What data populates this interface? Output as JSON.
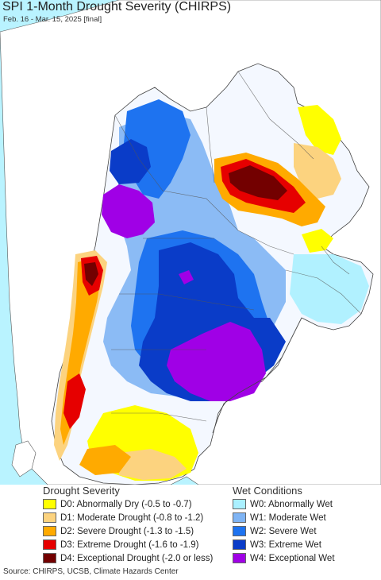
{
  "title": "SPI 1-Month Drought Severity (CHIRPS)",
  "subtitle": "Feb. 16 - Mar. 15, 2025 [final]",
  "colors": {
    "ocean": "#b9f3ff",
    "land_outside": "#ffffff",
    "border": "#555555"
  },
  "legend": {
    "drought": {
      "title": "Drought Severity",
      "items": [
        {
          "label": "D0: Abnormally Dry (-0.5 to -0.7)",
          "color": "#ffff00"
        },
        {
          "label": "D1: Moderate Drought (-0.8 to -1.2)",
          "color": "#fcd37f"
        },
        {
          "label": "D2: Severe Drought (-1.3 to -1.5)",
          "color": "#ffaa00"
        },
        {
          "label": "D3: Extreme Drought (-1.6 to -1.9)",
          "color": "#e60000"
        },
        {
          "label": "D4: Exceptional Drought (-2.0 or less)",
          "color": "#730000"
        }
      ]
    },
    "wet": {
      "title": "Wet Conditions",
      "items": [
        {
          "label": "W0: Abnormally Wet",
          "color": "#aaf0ff"
        },
        {
          "label": "W1: Moderate Wet",
          "color": "#7fb4f4"
        },
        {
          "label": "W2: Severe Wet",
          "color": "#1e73f0"
        },
        {
          "label": "W3: Extreme Wet",
          "color": "#0a3cc8"
        },
        {
          "label": "W4: Exceptional Wet",
          "color": "#a000e6"
        }
      ]
    }
  },
  "source": "Source: CHIRPS, UCSB, Climate Hazards Center"
}
